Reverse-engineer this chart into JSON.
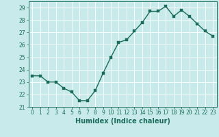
{
  "x": [
    0,
    1,
    2,
    3,
    4,
    5,
    6,
    7,
    8,
    9,
    10,
    11,
    12,
    13,
    14,
    15,
    16,
    17,
    18,
    19,
    20,
    21,
    22,
    23
  ],
  "y": [
    23.5,
    23.5,
    23.0,
    23.0,
    22.5,
    22.2,
    21.5,
    21.5,
    22.3,
    23.7,
    25.0,
    26.2,
    26.4,
    27.1,
    27.8,
    28.7,
    28.7,
    29.1,
    28.3,
    28.8,
    28.3,
    27.7,
    27.1,
    26.7
  ],
  "line_color": "#1a6b5a",
  "marker_color": "#1a6b5a",
  "bg_color": "#c8eaea",
  "grid_color": "#b0d8d8",
  "xlabel": "Humidex (Indice chaleur)",
  "ylim": [
    21,
    29.5
  ],
  "xlim": [
    -0.5,
    23.5
  ],
  "yticks": [
    21,
    22,
    23,
    24,
    25,
    26,
    27,
    28,
    29
  ],
  "xticks": [
    0,
    1,
    2,
    3,
    4,
    5,
    6,
    7,
    8,
    9,
    10,
    11,
    12,
    13,
    14,
    15,
    16,
    17,
    18,
    19,
    20,
    21,
    22,
    23
  ],
  "tick_fontsize": 5.5,
  "xlabel_fontsize": 7,
  "line_width": 1.0,
  "marker_size": 2.5
}
